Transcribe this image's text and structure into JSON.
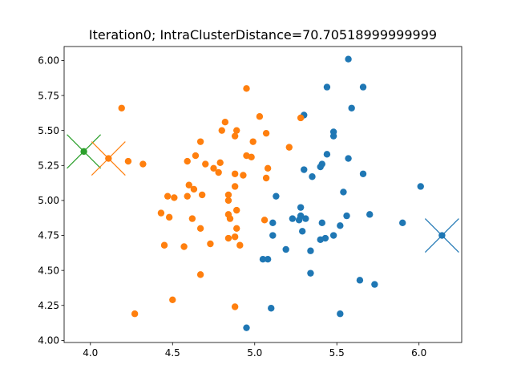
{
  "chart_data": {
    "type": "scatter",
    "title": "Iteration0; IntraClusterDistance=70.70518999999999",
    "xlabel": "",
    "ylabel": "",
    "xlim": [
      3.84,
      6.26
    ],
    "ylim": [
      3.985,
      6.1
    ],
    "grid": false,
    "x_ticks": [
      "4.0",
      "4.5",
      "5.0",
      "5.5",
      "6.0"
    ],
    "y_ticks": [
      "4.00",
      "4.25",
      "4.50",
      "4.75",
      "5.00",
      "5.25",
      "5.50",
      "5.75",
      "6.00"
    ],
    "colors": {
      "blue": "#1f77b4",
      "orange": "#ff7f0e",
      "green": "#2ca02c"
    },
    "series": [
      {
        "color": "#1f77b4",
        "points": [
          [
            5.57,
            6.01
          ],
          [
            5.66,
            5.81
          ],
          [
            5.44,
            5.81
          ],
          [
            5.59,
            5.66
          ],
          [
            5.3,
            5.61
          ],
          [
            5.48,
            5.49
          ],
          [
            5.48,
            5.46
          ],
          [
            5.44,
            5.33
          ],
          [
            5.57,
            5.3
          ],
          [
            5.41,
            5.26
          ],
          [
            5.4,
            5.24
          ],
          [
            5.3,
            5.22
          ],
          [
            5.66,
            5.19
          ],
          [
            5.35,
            5.17
          ],
          [
            6.01,
            5.1
          ],
          [
            5.54,
            5.06
          ],
          [
            5.13,
            5.03
          ],
          [
            5.28,
            4.95
          ],
          [
            5.7,
            4.9
          ],
          [
            5.56,
            4.89
          ],
          [
            5.28,
            4.89
          ],
          [
            5.23,
            4.87
          ],
          [
            5.31,
            4.87
          ],
          [
            5.27,
            4.86
          ],
          [
            5.9,
            4.84
          ],
          [
            5.11,
            4.84
          ],
          [
            5.41,
            4.84
          ],
          [
            5.52,
            4.82
          ],
          [
            5.29,
            4.78
          ],
          [
            5.11,
            4.75
          ],
          [
            5.48,
            4.75
          ],
          [
            5.43,
            4.73
          ],
          [
            5.4,
            4.72
          ],
          [
            5.19,
            4.65
          ],
          [
            5.34,
            4.64
          ],
          [
            5.05,
            4.58
          ],
          [
            5.08,
            4.58
          ],
          [
            5.34,
            4.48
          ],
          [
            5.64,
            4.43
          ],
          [
            5.73,
            4.4
          ],
          [
            5.1,
            4.23
          ],
          [
            5.52,
            4.19
          ],
          [
            4.95,
            4.09
          ]
        ]
      },
      {
        "color": "#ff7f0e",
        "points": [
          [
            4.95,
            5.8
          ],
          [
            4.19,
            5.66
          ],
          [
            5.03,
            5.6
          ],
          [
            5.28,
            5.59
          ],
          [
            4.82,
            5.56
          ],
          [
            4.8,
            5.5
          ],
          [
            4.89,
            5.5
          ],
          [
            5.07,
            5.48
          ],
          [
            4.88,
            5.46
          ],
          [
            4.67,
            5.42
          ],
          [
            4.99,
            5.42
          ],
          [
            5.21,
            5.38
          ],
          [
            4.64,
            5.32
          ],
          [
            4.95,
            5.32
          ],
          [
            4.98,
            5.31
          ],
          [
            4.23,
            5.28
          ],
          [
            4.59,
            5.28
          ],
          [
            4.32,
            5.26
          ],
          [
            4.7,
            5.26
          ],
          [
            4.79,
            5.27
          ],
          [
            4.75,
            5.23
          ],
          [
            5.08,
            5.23
          ],
          [
            4.78,
            5.2
          ],
          [
            4.88,
            5.19
          ],
          [
            4.93,
            5.18
          ],
          [
            5.07,
            5.16
          ],
          [
            4.6,
            5.11
          ],
          [
            4.88,
            5.1
          ],
          [
            4.63,
            5.08
          ],
          [
            4.47,
            5.03
          ],
          [
            4.51,
            5.02
          ],
          [
            4.59,
            5.03
          ],
          [
            4.68,
            5.04
          ],
          [
            4.84,
            5.04
          ],
          [
            4.84,
            5.0
          ],
          [
            4.43,
            4.91
          ],
          [
            4.89,
            4.93
          ],
          [
            4.84,
            4.9
          ],
          [
            4.85,
            4.87
          ],
          [
            4.48,
            4.88
          ],
          [
            4.62,
            4.87
          ],
          [
            5.06,
            4.86
          ],
          [
            4.67,
            4.8
          ],
          [
            4.89,
            4.8
          ],
          [
            4.84,
            4.73
          ],
          [
            4.88,
            4.74
          ],
          [
            4.73,
            4.69
          ],
          [
            4.91,
            4.68
          ],
          [
            4.45,
            4.68
          ],
          [
            4.57,
            4.67
          ],
          [
            4.67,
            4.47
          ],
          [
            4.5,
            4.29
          ],
          [
            4.88,
            4.24
          ],
          [
            4.27,
            4.19
          ]
        ]
      }
    ],
    "centroids": [
      {
        "color": "#2ca02c",
        "point": [
          3.96,
          5.35
        ],
        "marker": "dot-and-x"
      },
      {
        "color": "#ff7f0e",
        "point": [
          4.11,
          5.3
        ],
        "marker": "dot-and-x"
      },
      {
        "color": "#1f77b4",
        "point": [
          6.14,
          4.75
        ],
        "marker": "dot-and-x"
      }
    ]
  }
}
